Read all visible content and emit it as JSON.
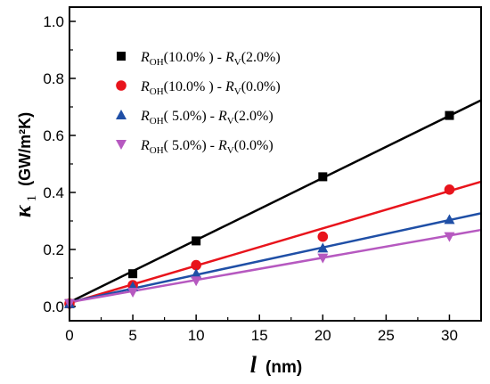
{
  "chart_data": {
    "type": "scatter",
    "xlabel_symbol": "l",
    "xlabel_unit": "(nm)",
    "ylabel_symbol": "κ",
    "ylabel_subscript": "1",
    "ylabel_unit": "(GW/m²K)",
    "xlim": [
      0,
      32.5
    ],
    "ylim": [
      -0.05,
      1.05
    ],
    "xticks": [
      0,
      5,
      10,
      15,
      20,
      25,
      30
    ],
    "xtick_labels": [
      "0",
      "5",
      "10",
      "15",
      "20",
      "25",
      "30"
    ],
    "yticks": [
      0.0,
      0.2,
      0.4,
      0.6,
      0.8,
      1.0
    ],
    "ytick_labels": [
      "0.0",
      "0.2",
      "0.4",
      "0.6",
      "0.8",
      "1.0"
    ],
    "legend_position": "top-left",
    "series": [
      {
        "name": "R_OH(10.0%) - R_V(2.0%)",
        "label_parts": {
          "r1": "R",
          "s1": "OH",
          "p1": "(10.0% )",
          "mid": "- ",
          "r2": "R",
          "s2": "V",
          "p2": "(2.0%)"
        },
        "color": "#000000",
        "marker": "square",
        "x": [
          0,
          5,
          10,
          20,
          30
        ],
        "y": [
          0.01,
          0.115,
          0.23,
          0.455,
          0.67
        ],
        "fit": [
          0.015,
          0.0218
        ]
      },
      {
        "name": "R_OH(10.0%) - R_V(0.0%)",
        "label_parts": {
          "r1": "R",
          "s1": "OH",
          "p1": "(10.0% )",
          "mid": "- ",
          "r2": "R",
          "s2": "V",
          "p2": "(0.0%)"
        },
        "color": "#e8141c",
        "marker": "circle",
        "x": [
          0,
          5,
          10,
          20,
          30
        ],
        "y": [
          0.01,
          0.075,
          0.145,
          0.245,
          0.41
        ],
        "fit": [
          0.012,
          0.0131
        ]
      },
      {
        "name": "R_OH(5.0%) - R_V(2.0%)",
        "label_parts": {
          "r1": "R",
          "s1": "OH",
          "p1": "( 5.0%)",
          "mid": "-  ",
          "r2": "R",
          "s2": "V",
          "p2": "(2.0%)"
        },
        "color": "#1f4fa6",
        "marker": "triangle-up",
        "x": [
          0,
          5,
          10,
          20,
          30
        ],
        "y": [
          0.01,
          0.07,
          0.115,
          0.205,
          0.305
        ],
        "fit": [
          0.015,
          0.0096
        ]
      },
      {
        "name": "R_OH(5.0%) - R_V(0.0%)",
        "label_parts": {
          "r1": "R",
          "s1": "OH",
          "p1": "( 5.0%)",
          "mid": "-  ",
          "r2": "R",
          "s2": "V",
          "p2": "(0.0%)"
        },
        "color": "#b659c0",
        "marker": "triangle-down",
        "x": [
          0,
          5,
          10,
          20,
          30
        ],
        "y": [
          0.01,
          0.05,
          0.09,
          0.17,
          0.245
        ],
        "fit": [
          0.015,
          0.0078
        ]
      }
    ]
  }
}
